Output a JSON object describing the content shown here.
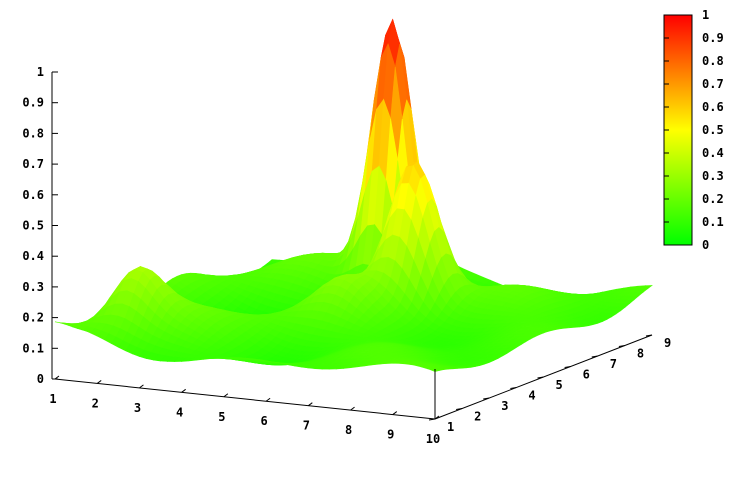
{
  "chart_data": {
    "type": "surface",
    "title": "",
    "xlabel": "",
    "ylabel": "",
    "zlabel": "",
    "x_range": [
      1,
      10
    ],
    "y_range": [
      1,
      9
    ],
    "z_range": [
      0,
      1
    ],
    "x_ticks": [
      "1",
      "2",
      "3",
      "4",
      "5",
      "6",
      "7",
      "8",
      "9",
      "10"
    ],
    "y_ticks": [
      "1",
      "2",
      "3",
      "4",
      "5",
      "6",
      "7",
      "8",
      "9"
    ],
    "z_ticks": [
      "0",
      "0.1",
      "0.2",
      "0.3",
      "0.4",
      "0.5",
      "0.6",
      "0.7",
      "0.8",
      "0.9",
      "1"
    ],
    "colorbar": {
      "range": [
        0,
        1
      ],
      "ticks": [
        "0",
        "0.1",
        "0.2",
        "0.3",
        "0.4",
        "0.5",
        "0.6",
        "0.7",
        "0.8",
        "0.9",
        "1"
      ],
      "colors": [
        "#00ff00",
        "#ffff00",
        "#ff0000"
      ]
    },
    "peaks": [
      {
        "x": 4.5,
        "y": 8.0,
        "z": 1.0
      },
      {
        "x": 6.1,
        "y": 6.3,
        "z": 0.6
      },
      {
        "x": 2.1,
        "y": 2.3,
        "z": 0.3
      },
      {
        "x": 5.4,
        "y": 4.8,
        "z": 0.2
      }
    ],
    "grid": false,
    "legend": "colorbar-right"
  }
}
